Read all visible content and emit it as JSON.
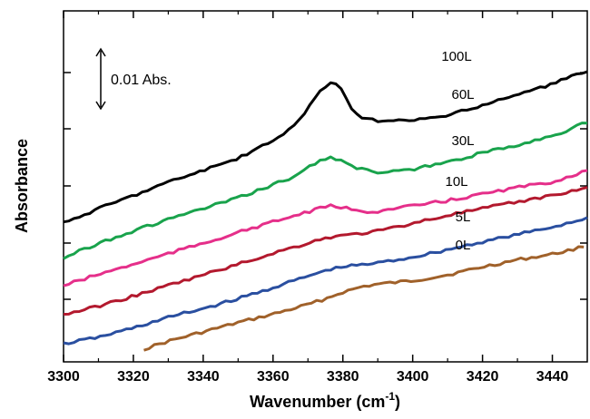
{
  "chart_data": {
    "type": "line",
    "xlabel": "Wavenumber (cm",
    "xlabel_sup": "-1",
    "xlabel_close": ")",
    "ylabel": "Absorbance",
    "xlim": [
      3300,
      3450
    ],
    "x_ticks": [
      3300,
      3320,
      3340,
      3360,
      3380,
      3400,
      3420,
      3440
    ],
    "y_tick_labels_shown": false,
    "grid": false,
    "scale_bar": {
      "label": "0.01 Abs.",
      "value": 0.01
    },
    "series": [
      {
        "name": "0L",
        "color": "#a0612a",
        "points": [
          [
            3323,
            0.0
          ],
          [
            3330,
            0.003
          ],
          [
            3340,
            0.0065
          ],
          [
            3350,
            0.01
          ],
          [
            3360,
            0.0132
          ],
          [
            3365,
            0.015
          ],
          [
            3370,
            0.0168
          ],
          [
            3375,
            0.019
          ],
          [
            3380,
            0.0215
          ],
          [
            3386,
            0.0237
          ],
          [
            3390,
            0.0245
          ],
          [
            3400,
            0.0258
          ],
          [
            3410,
            0.028
          ],
          [
            3420,
            0.031
          ],
          [
            3430,
            0.0337
          ],
          [
            3440,
            0.0358
          ],
          [
            3450,
            0.039
          ]
        ]
      },
      {
        "name": "5L",
        "color": "#2a4fa0",
        "points": [
          [
            3300,
            0.002
          ],
          [
            3310,
            0.0045
          ],
          [
            3320,
            0.008
          ],
          [
            3330,
            0.012
          ],
          [
            3340,
            0.0153
          ],
          [
            3350,
            0.019
          ],
          [
            3360,
            0.0232
          ],
          [
            3370,
            0.0275
          ],
          [
            3376,
            0.03
          ],
          [
            3380,
            0.031
          ],
          [
            3390,
            0.0325
          ],
          [
            3400,
            0.0347
          ],
          [
            3410,
            0.0375
          ],
          [
            3420,
            0.0405
          ],
          [
            3430,
            0.0432
          ],
          [
            3440,
            0.046
          ],
          [
            3450,
            0.0495
          ]
        ]
      },
      {
        "name": "10L",
        "color": "#b3192e",
        "points": [
          [
            3300,
            0.013
          ],
          [
            3310,
            0.0162
          ],
          [
            3320,
            0.02
          ],
          [
            3330,
            0.024
          ],
          [
            3340,
            0.028
          ],
          [
            3350,
            0.032
          ],
          [
            3360,
            0.0362
          ],
          [
            3370,
            0.04
          ],
          [
            3375,
            0.042
          ],
          [
            3380,
            0.0428
          ],
          [
            3390,
            0.0445
          ],
          [
            3400,
            0.0475
          ],
          [
            3410,
            0.0505
          ],
          [
            3420,
            0.053
          ],
          [
            3430,
            0.0555
          ],
          [
            3440,
            0.058
          ],
          [
            3450,
            0.061
          ]
        ]
      },
      {
        "name": "30L",
        "color": "#e52f8a",
        "points": [
          [
            3300,
            0.024
          ],
          [
            3310,
            0.0282
          ],
          [
            3320,
            0.032
          ],
          [
            3330,
            0.036
          ],
          [
            3340,
            0.04
          ],
          [
            3350,
            0.044
          ],
          [
            3360,
            0.048
          ],
          [
            3368,
            0.051
          ],
          [
            3372,
            0.0525
          ],
          [
            3376,
            0.054
          ],
          [
            3380,
            0.0535
          ],
          [
            3384,
            0.052
          ],
          [
            3390,
            0.052
          ],
          [
            3400,
            0.054
          ],
          [
            3410,
            0.056
          ],
          [
            3420,
            0.0585
          ],
          [
            3430,
            0.061
          ],
          [
            3440,
            0.063
          ],
          [
            3450,
            0.0675
          ]
        ]
      },
      {
        "name": "60L",
        "color": "#19a34c",
        "points": [
          [
            3300,
            0.0345
          ],
          [
            3310,
            0.04
          ],
          [
            3320,
            0.0445
          ],
          [
            3330,
            0.049
          ],
          [
            3340,
            0.053
          ],
          [
            3350,
            0.057
          ],
          [
            3360,
            0.062
          ],
          [
            3366,
            0.065
          ],
          [
            3370,
            0.0685
          ],
          [
            3374,
            0.0715
          ],
          [
            3377,
            0.0722
          ],
          [
            3380,
            0.0712
          ],
          [
            3384,
            0.0685
          ],
          [
            3388,
            0.067
          ],
          [
            3392,
            0.0665
          ],
          [
            3400,
            0.0678
          ],
          [
            3410,
            0.0705
          ],
          [
            3420,
            0.074
          ],
          [
            3430,
            0.077
          ],
          [
            3440,
            0.0805
          ],
          [
            3450,
            0.0855
          ]
        ]
      },
      {
        "name": "100L",
        "color": "#000000",
        "points": [
          [
            3300,
            0.0475
          ],
          [
            3310,
            0.053
          ],
          [
            3320,
            0.058
          ],
          [
            3330,
            0.063
          ],
          [
            3340,
            0.0675
          ],
          [
            3350,
            0.072
          ],
          [
            3360,
            0.0785
          ],
          [
            3365,
            0.083
          ],
          [
            3368,
            0.087
          ],
          [
            3371,
            0.093
          ],
          [
            3374,
            0.0985
          ],
          [
            3377,
            0.1005
          ],
          [
            3379,
            0.099
          ],
          [
            3381,
            0.0945
          ],
          [
            3383,
            0.09
          ],
          [
            3386,
            0.087
          ],
          [
            3390,
            0.086
          ],
          [
            3400,
            0.0863
          ],
          [
            3410,
            0.088
          ],
          [
            3420,
            0.092
          ],
          [
            3430,
            0.096
          ],
          [
            3440,
            0.1
          ],
          [
            3450,
            0.105
          ]
        ]
      }
    ]
  }
}
